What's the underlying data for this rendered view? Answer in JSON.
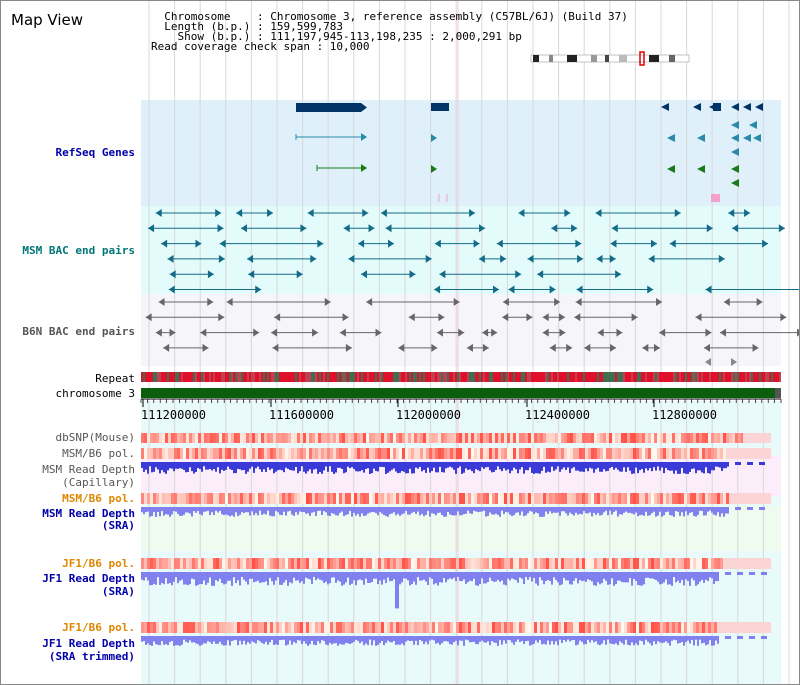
{
  "title": "Map View",
  "info": {
    "chromosome_line": "  Chromosome    : Chromosome 3, reference assembly (C57BL/6J) (Build 37)",
    "length_line": "  Length (b.p.) : 159,599,783",
    "show_line": "    Show (b.p.) : 111,197,945-113,198,235 : 2,000,291 bp",
    "coverage_line": "Read coverage check span : 10,000"
  },
  "tracks": {
    "refseq": "RefSeq Genes",
    "msm_bac": "MSM BAC end pairs",
    "b6n_bac": "B6N BAC end pairs",
    "repeat": "Repeat",
    "chromosome": "chromosome 3",
    "dbsnp": "dbSNP(Mouse)",
    "msm_b6_pol_1": "MSM/B6 pol.",
    "msm_depth_cap_1": "MSM Read Depth",
    "msm_depth_cap_2": "(Capillary)",
    "msm_b6_pol_2": "MSM/B6 pol.",
    "msm_depth_sra_1": "MSM Read Depth",
    "msm_depth_sra_2": "(SRA)",
    "jf1_b6_pol_1": "JF1/B6 pol.",
    "jf1_depth_1": "JF1 Read Depth",
    "jf1_depth_2": "(SRA)",
    "jf1_b6_pol_2": "JF1/B6 pol.",
    "jf1_trim_1": "JF1 Read Depth",
    "jf1_trim_2": "(SRA trimmed)"
  },
  "axis_ticks": [
    "111200000",
    "111600000",
    "112000000",
    "112400000",
    "112800000"
  ],
  "colors": {
    "label_blue": "#0000aa",
    "label_teal": "#007777",
    "label_gray": "#555555",
    "label_orange": "#dd8800",
    "refseq_bg": "#dff0fb",
    "bac_bg": "#e4fbfb",
    "gene_navy": "#003366",
    "gene_teal": "#2a8aa8",
    "gene_green": "#1a7a1a",
    "chrom_green": "#0b5e0b",
    "depth_blue": "#3a3ad8",
    "depth_light": "#8080ee"
  }
}
